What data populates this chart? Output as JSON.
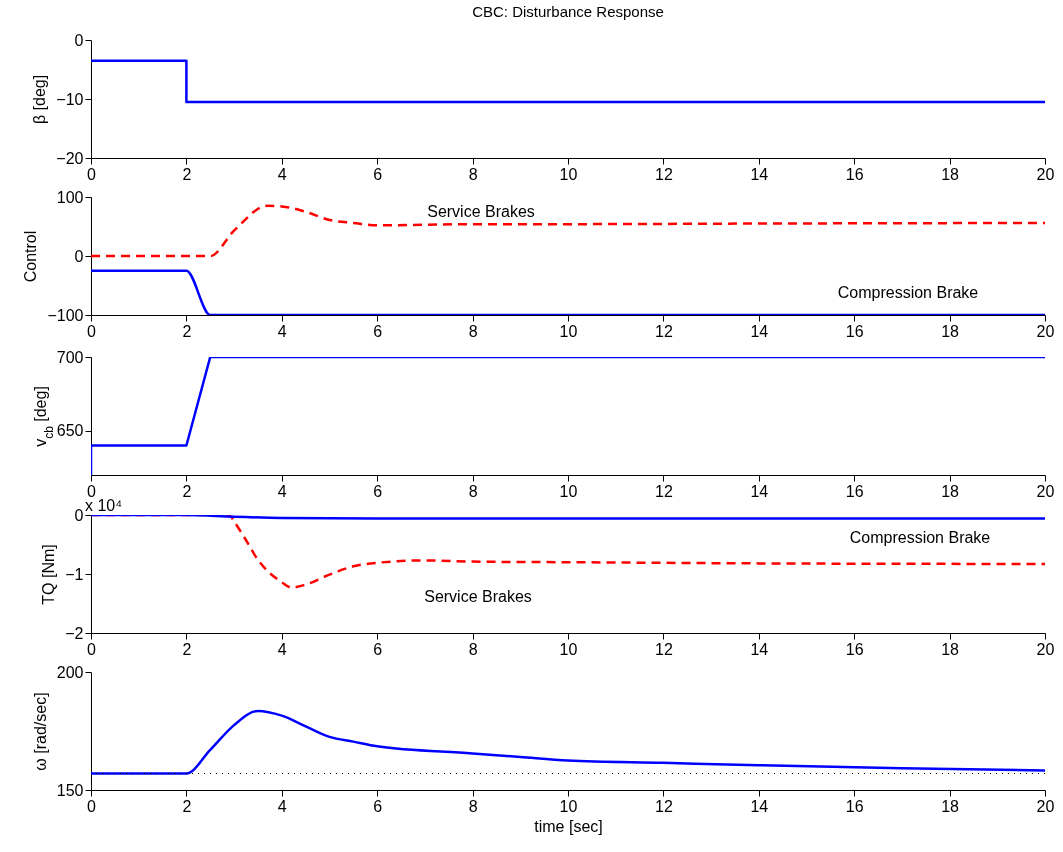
{
  "chart_data": [
    {
      "type": "line",
      "title": "CBC: Disturbance Response",
      "ylabel": "β [deg]",
      "xlim": [
        0,
        20
      ],
      "xticks": [
        0,
        2,
        4,
        6,
        8,
        10,
        12,
        14,
        16,
        18,
        20
      ],
      "ylim": [
        -20,
        0
      ],
      "yticks": [
        -20,
        -10,
        0
      ],
      "series": [
        {
          "color": "#0000ff",
          "x": [
            0,
            2,
            2,
            20
          ],
          "values": [
            -3.5,
            -3.5,
            -10.5,
            -10.5
          ]
        }
      ]
    },
    {
      "type": "line",
      "ylabel": "Control",
      "xlim": [
        0,
        20
      ],
      "xticks": [
        0,
        2,
        4,
        6,
        8,
        10,
        12,
        14,
        16,
        18,
        20
      ],
      "ylim": [
        -100,
        100
      ],
      "yticks": [
        -100,
        0,
        100
      ],
      "series": [
        {
          "name": "Service Brakes",
          "color": "#ff0000",
          "line_style": "dashed",
          "x": [
            0,
            2.5,
            3,
            3.7,
            4,
            4.5,
            5,
            5.5,
            6,
            7,
            8,
            10,
            14,
            20
          ],
          "values": [
            0,
            0,
            43,
            85,
            84,
            75,
            61,
            56,
            52,
            53,
            54,
            54,
            55,
            56
          ]
        },
        {
          "name": "Compression Brake",
          "color": "#0000ff",
          "x": [
            0,
            2,
            2.5,
            20
          ],
          "values": [
            -25,
            -25,
            -100,
            -100
          ]
        }
      ]
    },
    {
      "type": "line",
      "ylabel": "v$_{cb}$ [deg]",
      "xlim": [
        0,
        20
      ],
      "xticks": [
        0,
        2,
        4,
        6,
        8,
        10,
        12,
        14,
        16,
        18,
        20
      ],
      "ylim": [
        620,
        700
      ],
      "yticks": [
        650,
        700
      ],
      "series": [
        {
          "color": "#0000ff",
          "x": [
            0,
            0,
            2,
            2.5,
            20
          ],
          "values": [
            620,
            640,
            640,
            700,
            700
          ]
        }
      ]
    },
    {
      "type": "line",
      "ylabel": "TQ [Nm]",
      "xlim": [
        0,
        20
      ],
      "xticks": [
        0,
        2,
        4,
        6,
        8,
        10,
        12,
        14,
        16,
        18,
        20
      ],
      "ylim": [
        -2,
        0
      ],
      "yticks": [
        -2,
        -1,
        0
      ],
      "series": [
        {
          "name": "Service Brakes",
          "color": "#ff0000",
          "line_style": "dashed",
          "x": [
            0,
            2.9,
            3,
            3.2,
            3.5,
            4,
            4.2,
            4.5,
            5,
            5.5,
            6,
            7,
            8,
            10,
            14,
            20
          ],
          "values": [
            0,
            0,
            -0.11,
            -0.36,
            -0.76,
            -1.14,
            -1.23,
            -1.18,
            -1.01,
            -0.87,
            -0.81,
            -0.77,
            -0.79,
            -0.8,
            -0.82,
            -0.83
          ]
        },
        {
          "name": "Compression Brake",
          "color": "#0000ff",
          "x": [
            0,
            2,
            3,
            4,
            6,
            20
          ],
          "values": [
            0,
            0,
            -0.03,
            -0.05,
            -0.06,
            -0.06
          ]
        }
      ],
      "annotations": [
        "x 10⁴"
      ]
    },
    {
      "type": "line",
      "xlabel": "time [sec]",
      "ylabel": "ω [rad/sec]",
      "xlim": [
        0,
        20
      ],
      "xticks": [
        0,
        2,
        4,
        6,
        8,
        10,
        12,
        14,
        16,
        18,
        20
      ],
      "ylim": [
        150,
        200
      ],
      "yticks": [
        150,
        200
      ],
      "series": [
        {
          "color": "#0000ff",
          "x": [
            0,
            2,
            2.5,
            3,
            3.5,
            4,
            4.5,
            5,
            5.5,
            6,
            8,
            9,
            10,
            12,
            14,
            17,
            20
          ],
          "values": [
            157,
            157,
            167,
            177.5,
            183.5,
            181.5,
            177,
            172.5,
            170.5,
            168.5,
            165.5,
            164,
            162.5,
            161.5,
            160.5,
            159.2,
            158.3
          ]
        }
      ],
      "ref_lines": [
        {
          "axis": "y",
          "value": 157,
          "color": "#000000",
          "line_style": "dotted"
        }
      ]
    }
  ]
}
